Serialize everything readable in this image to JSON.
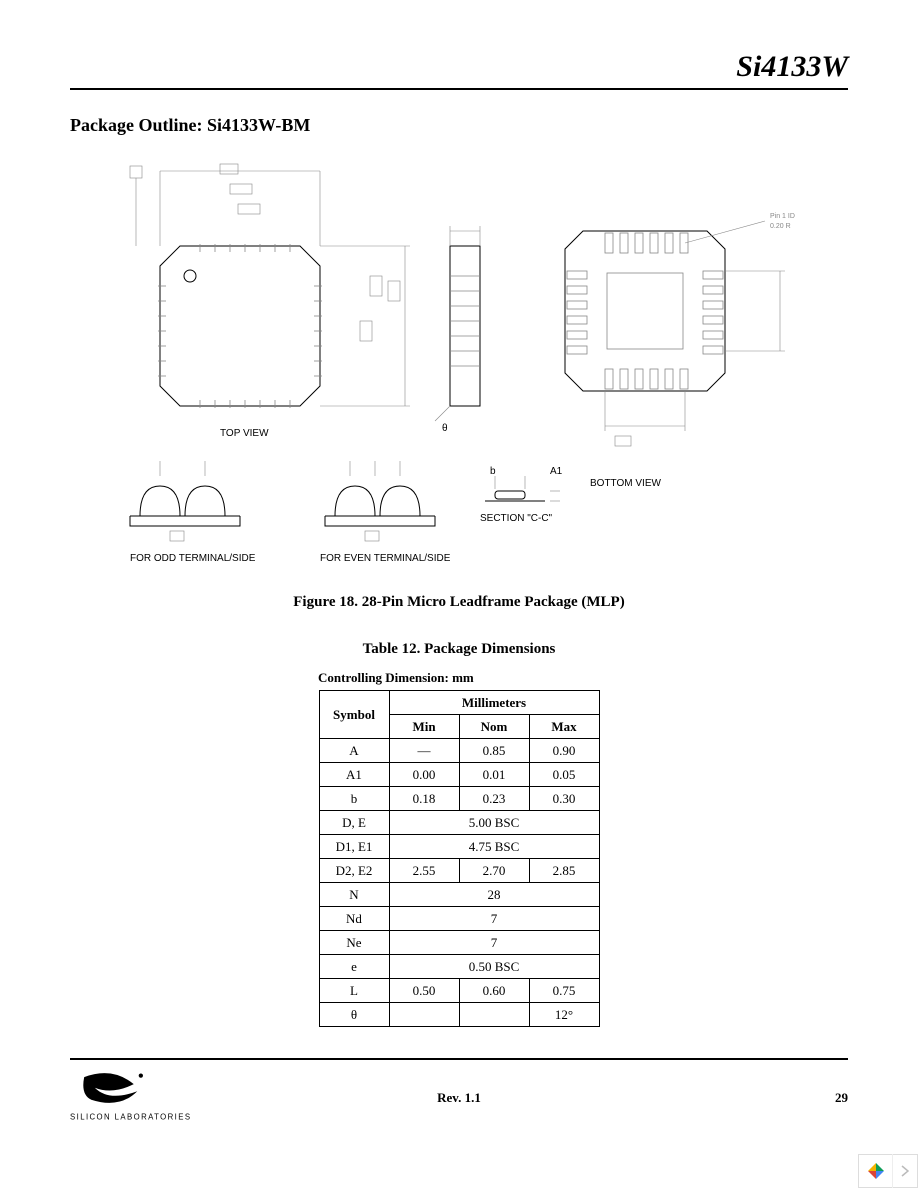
{
  "header": {
    "part_number": "Si4133W"
  },
  "section_title": "Package Outline: Si4133W-BM",
  "figure_caption": "Figure 18. 28-Pin Micro Leadframe Package (MLP)",
  "table_caption": "Table 12. Package Dimensions",
  "controlling_dim": "Controlling Dimension: mm",
  "diagram_labels": {
    "top_view": "TOP VIEW",
    "bottom_view": "BOTTOM VIEW",
    "section_cc": "SECTION \"C-C\"",
    "odd_terminal": "FOR ODD TERMINAL/SIDE",
    "even_terminal": "FOR EVEN TERMINAL/SIDE",
    "b_label": "b",
    "a1_label": "A1",
    "theta": "θ",
    "pin1_id": "Pin 1 ID",
    "pin1_r": "0.20 R"
  },
  "table": {
    "headers": {
      "symbol": "Symbol",
      "millimeters": "Millimeters",
      "min": "Min",
      "nom": "Nom",
      "max": "Max"
    },
    "rows": [
      {
        "sym": "A",
        "min": "—",
        "nom": "0.85",
        "max": "0.90",
        "span": false
      },
      {
        "sym": "A1",
        "min": "0.00",
        "nom": "0.01",
        "max": "0.05",
        "span": false
      },
      {
        "sym": "b",
        "min": "0.18",
        "nom": "0.23",
        "max": "0.30",
        "span": false
      },
      {
        "sym": "D, E",
        "val": "5.00 BSC",
        "span": true
      },
      {
        "sym": "D1, E1",
        "val": "4.75 BSC",
        "span": true
      },
      {
        "sym": "D2, E2",
        "min": "2.55",
        "nom": "2.70",
        "max": "2.85",
        "span": false
      },
      {
        "sym": "N",
        "val": "28",
        "span": true
      },
      {
        "sym": "Nd",
        "val": "7",
        "span": true
      },
      {
        "sym": "Ne",
        "val": "7",
        "span": true
      },
      {
        "sym": "e",
        "val": "0.50 BSC",
        "span": true
      },
      {
        "sym": "L",
        "min": "0.50",
        "nom": "0.60",
        "max": "0.75",
        "span": false
      },
      {
        "sym": "θ",
        "min": "",
        "nom": "",
        "max": "12°",
        "span": false
      }
    ]
  },
  "footer": {
    "rev": "Rev. 1.1",
    "page": "29",
    "company": "SILICON LABORATORIES"
  },
  "colors": {
    "text": "#000000",
    "line_gray": "#888888",
    "nav_icon_y": "#f4b400",
    "nav_icon_g": "#0f9d58",
    "nav_icon_b": "#4285f4",
    "nav_icon_r": "#db4437"
  }
}
